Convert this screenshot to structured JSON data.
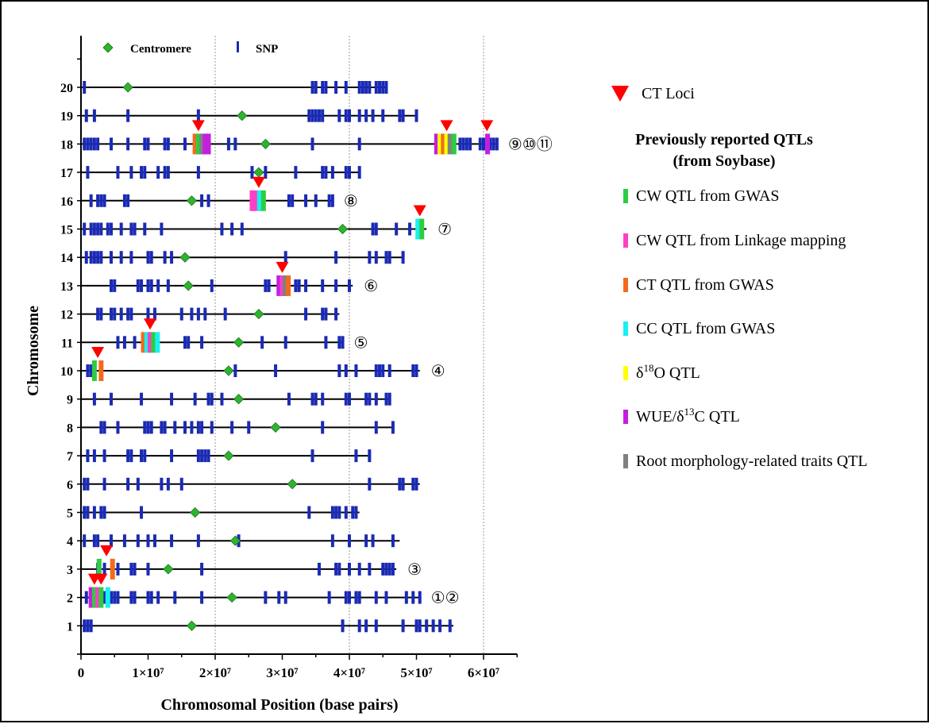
{
  "chart_data": {
    "type": "scatter",
    "title": "",
    "xlabel": "Chromosomal Position (base pairs)",
    "ylabel": "Chromosome",
    "xlim": [
      0,
      65000000
    ],
    "xticks": [
      0,
      10000000,
      20000000,
      30000000,
      40000000,
      50000000,
      60000000
    ],
    "xtick_labels": [
      "0",
      "1×10⁷",
      "2×10⁷",
      "3×10⁷",
      "4×10⁷",
      "5×10⁷",
      "6×10⁷"
    ],
    "ylim": [
      0,
      21
    ],
    "yticks": [
      1,
      2,
      3,
      4,
      5,
      6,
      7,
      8,
      9,
      10,
      11,
      12,
      13,
      14,
      15,
      16,
      17,
      18,
      19,
      20
    ],
    "grid_x": [
      20000000,
      40000000,
      60000000
    ],
    "legend_inner": [
      {
        "label": "Centromere",
        "marker": "diamond",
        "color": "#2db52d"
      },
      {
        "label": "SNP",
        "marker": "tick",
        "color": "#1a2ab5"
      }
    ],
    "chromosomes": [
      {
        "chr": 1,
        "length": 55500000,
        "centromere": 16500000,
        "snps": [
          500000,
          1000000,
          1500000,
          39000000,
          41500000,
          42500000,
          44000000,
          48000000,
          50000000,
          50500000,
          51500000,
          52500000,
          53500000,
          55000000
        ]
      },
      {
        "chr": 2,
        "length": 50500000,
        "centromere": 22500000,
        "snps": [
          800000,
          2000000,
          2500000,
          3500000,
          4500000,
          5000000,
          5500000,
          7500000,
          8000000,
          10000000,
          10500000,
          11500000,
          14000000,
          18000000,
          27500000,
          29500000,
          30500000,
          37000000,
          39500000,
          40000000,
          41000000,
          41500000,
          44000000,
          45500000,
          48500000,
          49500000,
          50500000
        ]
      },
      {
        "chr": 3,
        "length": 47000000,
        "centromere": 13000000,
        "snps": [
          2500000,
          3500000,
          5500000,
          7500000,
          8000000,
          10000000,
          18000000,
          35500000,
          38000000,
          38500000,
          40000000,
          41500000,
          43000000,
          45000000,
          45500000,
          46000000,
          46500000
        ]
      },
      {
        "chr": 4,
        "length": 47500000,
        "centromere": 23000000,
        "snps": [
          500000,
          2000000,
          2500000,
          4500000,
          6500000,
          8500000,
          10000000,
          11000000,
          13500000,
          17500000,
          23500000,
          37500000,
          40000000,
          42500000,
          43500000,
          46500000
        ]
      },
      {
        "chr": 5,
        "length": 41500000,
        "centromere": 17000000,
        "snps": [
          500000,
          1000000,
          2000000,
          3000000,
          3500000,
          9000000,
          34000000,
          37500000,
          38000000,
          38500000,
          39500000,
          40500000,
          41000000
        ]
      },
      {
        "chr": 6,
        "length": 50500000,
        "centromere": 31500000,
        "snps": [
          500000,
          1000000,
          3500000,
          7000000,
          8500000,
          12000000,
          13000000,
          15000000,
          43000000,
          47500000,
          48000000,
          49500000,
          50000000
        ]
      },
      {
        "chr": 7,
        "length": 43000000,
        "centromere": 22000000,
        "snps": [
          1000000,
          2000000,
          3500000,
          7000000,
          7500000,
          9000000,
          9500000,
          13500000,
          17500000,
          18000000,
          18500000,
          19000000,
          34500000,
          41000000,
          43000000
        ]
      },
      {
        "chr": 8,
        "length": 46500000,
        "centromere": 29000000,
        "snps": [
          3000000,
          3500000,
          5500000,
          9500000,
          10000000,
          10500000,
          12000000,
          12500000,
          14000000,
          15500000,
          16500000,
          17500000,
          18000000,
          19500000,
          22500000,
          25000000,
          36000000,
          44000000,
          46500000
        ]
      },
      {
        "chr": 9,
        "length": 46000000,
        "centromere": 23500000,
        "snps": [
          2000000,
          4500000,
          9000000,
          13500000,
          17000000,
          19000000,
          19500000,
          21000000,
          31000000,
          34500000,
          35000000,
          36000000,
          39500000,
          40000000,
          42500000,
          43000000,
          44000000,
          45500000,
          46000000
        ]
      },
      {
        "chr": 10,
        "length": 50500000,
        "centromere": 22000000,
        "snps": [
          1000000,
          1500000,
          23000000,
          29000000,
          38500000,
          39500000,
          41000000,
          44000000,
          44500000,
          45000000,
          46000000,
          49500000,
          50000000
        ]
      },
      {
        "chr": 11,
        "length": 39000000,
        "centromere": 23500000,
        "snps": [
          5500000,
          6500000,
          8000000,
          15500000,
          16000000,
          18000000,
          27000000,
          30500000,
          36500000,
          38500000,
          39000000
        ]
      },
      {
        "chr": 12,
        "length": 38500000,
        "centromere": 26500000,
        "snps": [
          2500000,
          3000000,
          4500000,
          5000000,
          6000000,
          7000000,
          7500000,
          10000000,
          11000000,
          15000000,
          16500000,
          17500000,
          18500000,
          21500000,
          33500000,
          36000000,
          36500000,
          38000000
        ]
      },
      {
        "chr": 13,
        "length": 40500000,
        "centromere": 16000000,
        "snps": [
          4500000,
          5000000,
          8500000,
          9000000,
          10000000,
          10500000,
          11500000,
          13000000,
          19500000,
          27500000,
          28000000,
          32000000,
          32500000,
          33500000,
          36000000,
          38000000,
          40000000
        ]
      },
      {
        "chr": 14,
        "length": 48000000,
        "centromere": 15500000,
        "snps": [
          800000,
          1500000,
          2000000,
          2500000,
          3000000,
          4500000,
          6000000,
          7500000,
          10000000,
          10500000,
          12500000,
          13500000,
          30500000,
          38000000,
          43000000,
          44000000,
          45500000,
          46000000,
          48000000
        ]
      },
      {
        "chr": 15,
        "length": 51500000,
        "centromere": 39000000,
        "snps": [
          500000,
          1500000,
          2000000,
          2500000,
          3000000,
          4000000,
          4500000,
          6000000,
          7500000,
          8000000,
          9500000,
          12000000,
          21000000,
          22500000,
          24000000,
          43500000,
          44000000,
          47000000,
          49000000
        ]
      },
      {
        "chr": 16,
        "length": 37500000,
        "centromere": 16500000,
        "snps": [
          1500000,
          2500000,
          3000000,
          3500000,
          6500000,
          7000000,
          18000000,
          19000000,
          25500000,
          31000000,
          31500000,
          33500000,
          35000000,
          37000000,
          37500000
        ]
      },
      {
        "chr": 17,
        "length": 41500000,
        "centromere": 26500000,
        "snps": [
          1000000,
          5500000,
          7500000,
          9000000,
          9500000,
          11500000,
          12500000,
          13000000,
          17500000,
          25500000,
          27500000,
          32000000,
          36000000,
          36500000,
          37500000,
          39500000,
          40000000,
          41500000
        ]
      },
      {
        "chr": 18,
        "length": 62000000,
        "centromere": 27500000,
        "snps": [
          500000,
          1000000,
          1500000,
          2000000,
          2500000,
          4500000,
          7000000,
          9500000,
          10000000,
          12500000,
          13000000,
          15500000,
          22000000,
          23000000,
          34500000,
          41500000,
          53000000,
          53500000,
          56500000,
          57000000,
          57500000,
          58000000,
          59500000,
          60000000,
          61000000,
          61500000,
          62000000
        ]
      },
      {
        "chr": 19,
        "length": 50000000,
        "centromere": 24000000,
        "snps": [
          800000,
          2000000,
          7000000,
          17500000,
          34000000,
          34500000,
          35000000,
          35500000,
          36000000,
          38500000,
          39500000,
          40000000,
          41500000,
          42500000,
          43500000,
          45000000,
          47500000,
          48000000,
          50000000
        ]
      },
      {
        "chr": 20,
        "length": 45500000,
        "centromere": 7000000,
        "snps": [
          500000,
          34500000,
          35000000,
          36000000,
          36500000,
          38000000,
          39500000,
          41500000,
          42000000,
          42500000,
          43000000,
          44000000,
          44500000,
          45000000,
          45500000
        ]
      }
    ],
    "qtls": [
      {
        "chr": 2,
        "pos": 1500000,
        "type": "wue"
      },
      {
        "chr": 2,
        "pos": 2000000,
        "type": "cw_gwas"
      },
      {
        "chr": 2,
        "pos": 2500000,
        "type": "cw_link"
      },
      {
        "chr": 2,
        "pos": 3000000,
        "type": "cw_gwas"
      },
      {
        "chr": 2,
        "pos": 4000000,
        "type": "cc"
      },
      {
        "chr": 3,
        "pos": 2700000,
        "type": "cw_gwas"
      },
      {
        "chr": 3,
        "pos": 4700000,
        "type": "ct"
      },
      {
        "chr": 10,
        "pos": 2000000,
        "type": "cw_gwas"
      },
      {
        "chr": 10,
        "pos": 3000000,
        "type": "ct"
      },
      {
        "chr": 11,
        "pos": 9300000,
        "type": "ct"
      },
      {
        "chr": 11,
        "pos": 9800000,
        "type": "cc"
      },
      {
        "chr": 11,
        "pos": 10300000,
        "type": "cw_link"
      },
      {
        "chr": 11,
        "pos": 10800000,
        "type": "cw_gwas"
      },
      {
        "chr": 11,
        "pos": 11400000,
        "type": "cc"
      },
      {
        "chr": 13,
        "pos": 29500000,
        "type": "wue"
      },
      {
        "chr": 13,
        "pos": 30000000,
        "type": "cw_link"
      },
      {
        "chr": 13,
        "pos": 30400000,
        "type": "root"
      },
      {
        "chr": 13,
        "pos": 30900000,
        "type": "ct"
      },
      {
        "chr": 15,
        "pos": 50200000,
        "type": "cc"
      },
      {
        "chr": 15,
        "pos": 50800000,
        "type": "cw_gwas"
      },
      {
        "chr": 16,
        "pos": 25500000,
        "type": "cw_link"
      },
      {
        "chr": 16,
        "pos": 26000000,
        "type": "cw_link"
      },
      {
        "chr": 16,
        "pos": 26600000,
        "type": "cc"
      },
      {
        "chr": 16,
        "pos": 27200000,
        "type": "cw_gwas"
      },
      {
        "chr": 18,
        "pos": 17000000,
        "type": "ct"
      },
      {
        "chr": 18,
        "pos": 17500000,
        "type": "cw_gwas"
      },
      {
        "chr": 18,
        "pos": 18000000,
        "type": "root"
      },
      {
        "chr": 18,
        "pos": 18500000,
        "type": "wue"
      },
      {
        "chr": 18,
        "pos": 19000000,
        "type": "wue"
      },
      {
        "chr": 18,
        "pos": 53000000,
        "type": "wue"
      },
      {
        "chr": 18,
        "pos": 53500000,
        "type": "d18o"
      },
      {
        "chr": 18,
        "pos": 54000000,
        "type": "ct"
      },
      {
        "chr": 18,
        "pos": 54500000,
        "type": "d18o"
      },
      {
        "chr": 18,
        "pos": 55000000,
        "type": "root"
      },
      {
        "chr": 18,
        "pos": 55600000,
        "type": "cw_gwas"
      },
      {
        "chr": 18,
        "pos": 60600000,
        "type": "wue"
      }
    ],
    "ct_loci": [
      {
        "chr": 2,
        "pos": 2000000
      },
      {
        "chr": 2,
        "pos": 3000000
      },
      {
        "chr": 3,
        "pos": 3800000
      },
      {
        "chr": 10,
        "pos": 2500000
      },
      {
        "chr": 11,
        "pos": 10300000
      },
      {
        "chr": 13,
        "pos": 30000000
      },
      {
        "chr": 15,
        "pos": 50500000
      },
      {
        "chr": 16,
        "pos": 26500000
      },
      {
        "chr": 18,
        "pos": 17500000
      },
      {
        "chr": 18,
        "pos": 54500000
      },
      {
        "chr": 18,
        "pos": 60500000
      }
    ],
    "locus_labels": [
      {
        "chr": 2,
        "text": "①②"
      },
      {
        "chr": 3,
        "text": "③"
      },
      {
        "chr": 10,
        "text": "④"
      },
      {
        "chr": 11,
        "text": "⑤"
      },
      {
        "chr": 13,
        "text": "⑥"
      },
      {
        "chr": 15,
        "text": "⑦"
      },
      {
        "chr": 16,
        "text": "⑧"
      },
      {
        "chr": 18,
        "text": "⑨⑩⑪"
      }
    ],
    "legend": {
      "ct_loci_label": "CT Loci",
      "heading_line1": "Previously reported QTLs",
      "heading_line2": "(from Soybase)",
      "items": [
        {
          "key": "cw_gwas",
          "label": "CW QTL from GWAS",
          "color": "#2ecc40"
        },
        {
          "key": "cw_link",
          "label": "CW QTL from Linkage mapping",
          "color": "#ff3fc4"
        },
        {
          "key": "ct",
          "label": "CT QTL from GWAS",
          "color": "#f26b1d"
        },
        {
          "key": "cc",
          "label": "CC QTL from GWAS",
          "color": "#19f0f0"
        },
        {
          "key": "d18o",
          "label": "δ18O QTL",
          "color": "#ffff00"
        },
        {
          "key": "wue",
          "label": "WUE/δ13C QTL",
          "color": "#c41fe0"
        },
        {
          "key": "root",
          "label": "Root morphology-related traits QTL",
          "color": "#808080"
        }
      ]
    },
    "colors": {
      "snp": "#1a2ab5",
      "centromere": "#2db52d",
      "ct_loci": "#ff0000",
      "line": "#000000",
      "grid": "#9a9a9a"
    }
  }
}
